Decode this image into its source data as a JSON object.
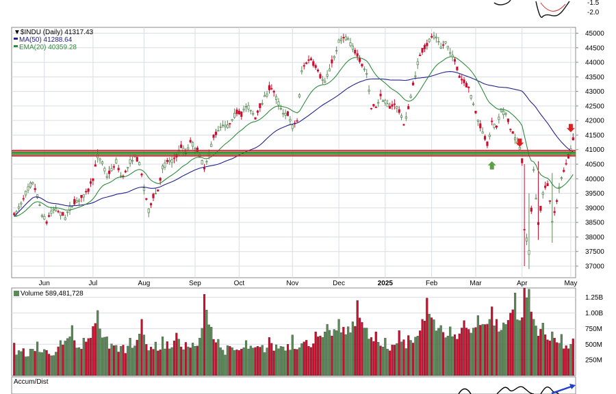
{
  "colors": {
    "up": "#5a8a55",
    "down": "#c8102e",
    "ma50": "#20208a",
    "ema20": "#2e8b3a",
    "resistance": "#d41f26",
    "support": "#2b8a2b",
    "up_arrow": "#5f9f4a",
    "down_arrow": "#e02020",
    "accum_line": "#000000",
    "accum_highlight": "#1f3fcf",
    "grid": "#d8dce4",
    "axis_text": "#000000"
  },
  "chart_data": [
    {
      "type": "candlestick",
      "name": "price_panel",
      "header": {
        "symbol_line": "$INDU (Daily) 41317.43",
        "ma_line": "MA(50) 41288.64",
        "ema_line": "EMA(20) 40359.28"
      },
      "y_ticks": [
        "45000",
        "44500",
        "44000",
        "43500",
        "43000",
        "42500",
        "42000",
        "41500",
        "41000",
        "40500",
        "40000",
        "39500",
        "39000",
        "38500",
        "38000",
        "37500",
        "37000"
      ],
      "ylim": [
        36600,
        45200
      ],
      "x_ticks": [
        {
          "label": "Jun",
          "index": 13
        },
        {
          "label": "Jul",
          "index": 34
        },
        {
          "label": "Aug",
          "index": 56
        },
        {
          "label": "Sep",
          "index": 78
        },
        {
          "label": "Oct",
          "index": 97
        },
        {
          "label": "Nov",
          "index": 120
        },
        {
          "label": "Dec",
          "index": 140
        },
        {
          "label": "2025",
          "index": 160
        },
        {
          "label": "Feb",
          "index": 180
        },
        {
          "label": "Mar",
          "index": 199
        },
        {
          "label": "Apr",
          "index": 219
        },
        {
          "label": "May",
          "index": 240
        }
      ],
      "support_levels": [
        40800,
        40950
      ],
      "resistance_levels": [
        40800,
        40950
      ],
      "close_anchors": [
        [
          0,
          38700
        ],
        [
          3,
          39200
        ],
        [
          6,
          39700
        ],
        [
          8,
          39900
        ],
        [
          10,
          39400
        ],
        [
          12,
          38800
        ],
        [
          14,
          38500
        ],
        [
          16,
          38900
        ],
        [
          18,
          39000
        ],
        [
          20,
          38800
        ],
        [
          22,
          38700
        ],
        [
          24,
          39000
        ],
        [
          26,
          39200
        ],
        [
          28,
          39300
        ],
        [
          30,
          39400
        ],
        [
          32,
          39600
        ],
        [
          34,
          40000
        ],
        [
          36,
          40800
        ],
        [
          38,
          40600
        ],
        [
          40,
          40100
        ],
        [
          42,
          40300
        ],
        [
          44,
          40600
        ],
        [
          46,
          40100
        ],
        [
          48,
          40200
        ],
        [
          50,
          40600
        ],
        [
          52,
          40800
        ],
        [
          54,
          40500
        ],
        [
          56,
          39700
        ],
        [
          58,
          38900
        ],
        [
          60,
          39400
        ],
        [
          62,
          39600
        ],
        [
          64,
          40400
        ],
        [
          66,
          40600
        ],
        [
          68,
          40600
        ],
        [
          70,
          40800
        ],
        [
          72,
          41100
        ],
        [
          74,
          40900
        ],
        [
          76,
          41300
        ],
        [
          78,
          41100
        ],
        [
          80,
          40800
        ],
        [
          82,
          40400
        ],
        [
          84,
          40900
        ],
        [
          86,
          41400
        ],
        [
          88,
          41700
        ],
        [
          90,
          41900
        ],
        [
          92,
          41800
        ],
        [
          94,
          42100
        ],
        [
          96,
          42300
        ],
        [
          98,
          42200
        ],
        [
          100,
          42500
        ],
        [
          102,
          42400
        ],
        [
          104,
          42100
        ],
        [
          106,
          42500
        ],
        [
          108,
          42800
        ],
        [
          110,
          43100
        ],
        [
          112,
          43000
        ],
        [
          114,
          42600
        ],
        [
          116,
          42300
        ],
        [
          118,
          42200
        ],
        [
          120,
          41800
        ],
        [
          122,
          42000
        ],
        [
          124,
          43700
        ],
        [
          126,
          44000
        ],
        [
          128,
          44100
        ],
        [
          130,
          43800
        ],
        [
          132,
          43500
        ],
        [
          134,
          43300
        ],
        [
          136,
          43800
        ],
        [
          138,
          44200
        ],
        [
          140,
          44700
        ],
        [
          142,
          44900
        ],
        [
          144,
          44800
        ],
        [
          146,
          44500
        ],
        [
          148,
          44200
        ],
        [
          150,
          43900
        ],
        [
          152,
          43600
        ],
        [
          154,
          42400
        ],
        [
          156,
          42500
        ],
        [
          158,
          42800
        ],
        [
          160,
          42700
        ],
        [
          162,
          42400
        ],
        [
          164,
          42600
        ],
        [
          166,
          42300
        ],
        [
          168,
          41900
        ],
        [
          170,
          42400
        ],
        [
          172,
          43200
        ],
        [
          174,
          44000
        ],
        [
          176,
          44400
        ],
        [
          178,
          44600
        ],
        [
          180,
          44900
        ],
        [
          182,
          44800
        ],
        [
          184,
          44500
        ],
        [
          186,
          44700
        ],
        [
          188,
          44400
        ],
        [
          190,
          44000
        ],
        [
          192,
          43500
        ],
        [
          194,
          43300
        ],
        [
          196,
          43100
        ],
        [
          198,
          42600
        ],
        [
          200,
          42000
        ],
        [
          202,
          41600
        ],
        [
          204,
          41200
        ],
        [
          206,
          41900
        ],
        [
          208,
          41800
        ],
        [
          210,
          42400
        ],
        [
          212,
          42200
        ],
        [
          214,
          41700
        ],
        [
          216,
          41400
        ],
        [
          218,
          41100
        ],
        [
          219,
          40600
        ],
        [
          220,
          38300
        ],
        [
          222,
          37500
        ],
        [
          224,
          40300
        ],
        [
          226,
          38400
        ],
        [
          228,
          39500
        ],
        [
          230,
          39800
        ],
        [
          232,
          38600
        ],
        [
          234,
          39200
        ],
        [
          236,
          40100
        ],
        [
          238,
          40500
        ],
        [
          240,
          41000
        ],
        [
          241,
          41317
        ]
      ]
    },
    {
      "type": "bar",
      "name": "volume_panel",
      "title": "Volume 589,481,728",
      "y_ticks": [
        "1.25B",
        "1.00B",
        "750M",
        "500M",
        "250M"
      ],
      "ylim": [
        0,
        1400000000
      ],
      "volume_anchors": [
        [
          0,
          520
        ],
        [
          10,
          540
        ],
        [
          20,
          560
        ],
        [
          25,
          800
        ],
        [
          26,
          560
        ],
        [
          30,
          600
        ],
        [
          36,
          1040
        ],
        [
          40,
          620
        ],
        [
          50,
          600
        ],
        [
          55,
          900
        ],
        [
          56,
          650
        ],
        [
          64,
          620
        ],
        [
          70,
          680
        ],
        [
          80,
          600
        ],
        [
          82,
          1300
        ],
        [
          88,
          580
        ],
        [
          100,
          560
        ],
        [
          110,
          610
        ],
        [
          120,
          650
        ],
        [
          130,
          700
        ],
        [
          135,
          820
        ],
        [
          140,
          900
        ],
        [
          146,
          860
        ],
        [
          148,
          1200
        ],
        [
          152,
          760
        ],
        [
          156,
          700
        ],
        [
          160,
          600
        ],
        [
          166,
          720
        ],
        [
          170,
          640
        ],
        [
          176,
          900
        ],
        [
          178,
          1240
        ],
        [
          184,
          800
        ],
        [
          188,
          780
        ],
        [
          194,
          880
        ],
        [
          200,
          960
        ],
        [
          206,
          1100
        ],
        [
          208,
          900
        ],
        [
          214,
          1000
        ],
        [
          216,
          1320
        ],
        [
          218,
          880
        ],
        [
          220,
          1400
        ],
        [
          222,
          1380
        ],
        [
          224,
          900
        ],
        [
          228,
          840
        ],
        [
          232,
          700
        ],
        [
          236,
          660
        ],
        [
          241,
          589
        ]
      ]
    },
    {
      "type": "line",
      "name": "accum_dist_panel",
      "title": "Accum/Dist"
    }
  ]
}
